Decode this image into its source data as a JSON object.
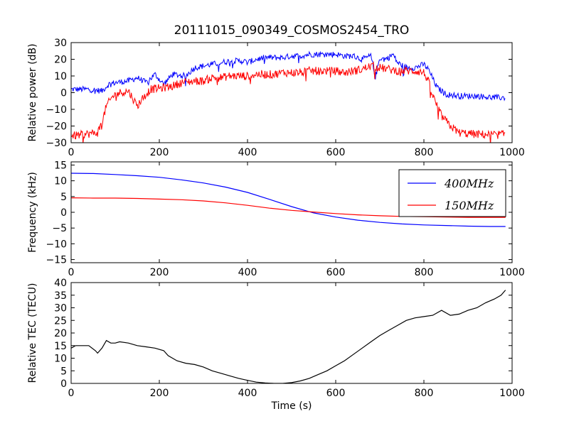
{
  "figure": {
    "title": "20111015_090349_COSMOS2454_TRO"
  },
  "chart_data": [
    {
      "type": "line",
      "xlabel": "",
      "ylabel": "Relative power (dB)",
      "xlim": [
        0,
        1000
      ],
      "ylim": [
        -30,
        30
      ],
      "xticks": [
        "0",
        "200",
        "400",
        "600",
        "800",
        "1000"
      ],
      "yticks": [
        "−30",
        "−20",
        "−10",
        "0",
        "10",
        "20",
        "30"
      ],
      "grid": false,
      "noisy": true,
      "series": [
        {
          "color": "#0000ff",
          "noise": 1.8,
          "points": [
            [
              0,
              2
            ],
            [
              40,
              2
            ],
            [
              70,
              1
            ],
            [
              85,
              5
            ],
            [
              100,
              6
            ],
            [
              130,
              7
            ],
            [
              150,
              9
            ],
            [
              170,
              6
            ],
            [
              190,
              11
            ],
            [
              210,
              5
            ],
            [
              230,
              11
            ],
            [
              260,
              10
            ],
            [
              280,
              15
            ],
            [
              300,
              16
            ],
            [
              320,
              17
            ],
            [
              340,
              18
            ],
            [
              360,
              19
            ],
            [
              380,
              19
            ],
            [
              390,
              19
            ],
            [
              400,
              18
            ],
            [
              420,
              20
            ],
            [
              440,
              21
            ],
            [
              460,
              21
            ],
            [
              480,
              21
            ],
            [
              500,
              22
            ],
            [
              520,
              22
            ],
            [
              540,
              23
            ],
            [
              560,
              23
            ],
            [
              580,
              23
            ],
            [
              600,
              23
            ],
            [
              620,
              22
            ],
            [
              640,
              22
            ],
            [
              660,
              20
            ],
            [
              680,
              22
            ],
            [
              690,
              9
            ],
            [
              700,
              21
            ],
            [
              710,
              20
            ],
            [
              720,
              21
            ],
            [
              730,
              23
            ],
            [
              740,
              18
            ],
            [
              760,
              15
            ],
            [
              780,
              15
            ],
            [
              800,
              17
            ],
            [
              810,
              14
            ],
            [
              830,
              3
            ],
            [
              850,
              -1
            ],
            [
              880,
              -2
            ],
            [
              920,
              -2
            ],
            [
              960,
              -3
            ],
            [
              985,
              -3
            ]
          ]
        },
        {
          "color": "#ff0000",
          "noise": 2.5,
          "points": [
            [
              0,
              -26
            ],
            [
              30,
              -25
            ],
            [
              60,
              -24
            ],
            [
              70,
              -18
            ],
            [
              80,
              -8
            ],
            [
              95,
              -2
            ],
            [
              110,
              0
            ],
            [
              130,
              1
            ],
            [
              150,
              -8
            ],
            [
              160,
              -4
            ],
            [
              180,
              2
            ],
            [
              210,
              3
            ],
            [
              230,
              4
            ],
            [
              250,
              6
            ],
            [
              280,
              7
            ],
            [
              300,
              7
            ],
            [
              320,
              9
            ],
            [
              340,
              9
            ],
            [
              360,
              10
            ],
            [
              380,
              10
            ],
            [
              400,
              10
            ],
            [
              420,
              11
            ],
            [
              440,
              11
            ],
            [
              460,
              11
            ],
            [
              480,
              12
            ],
            [
              500,
              12
            ],
            [
              520,
              12
            ],
            [
              540,
              13
            ],
            [
              560,
              13
            ],
            [
              580,
              13
            ],
            [
              600,
              13
            ],
            [
              620,
              12
            ],
            [
              640,
              13
            ],
            [
              660,
              14
            ],
            [
              680,
              16
            ],
            [
              700,
              15
            ],
            [
              720,
              14
            ],
            [
              740,
              13
            ],
            [
              760,
              13
            ],
            [
              780,
              13
            ],
            [
              800,
              12
            ],
            [
              810,
              7
            ],
            [
              820,
              -2
            ],
            [
              830,
              -8
            ],
            [
              840,
              -14
            ],
            [
              860,
              -20
            ],
            [
              880,
              -24
            ],
            [
              920,
              -25
            ],
            [
              960,
              -25
            ],
            [
              985,
              -25
            ]
          ]
        }
      ]
    },
    {
      "type": "line",
      "xlabel": "",
      "ylabel": "Frequency (kHz)",
      "xlim": [
        0,
        1000
      ],
      "ylim": [
        -16,
        16
      ],
      "xticks": [
        "0",
        "200",
        "400",
        "600",
        "800",
        "1000"
      ],
      "yticks": [
        "−15",
        "−10",
        "−5",
        "0",
        "5",
        "10",
        "15"
      ],
      "ytick_values": [
        -15,
        -10,
        -5,
        0,
        5,
        10,
        15
      ],
      "grid": false,
      "legend": "upper-right",
      "series": [
        {
          "name": "400MHz",
          "color": "#0000ff",
          "points": [
            [
              0,
              12.4
            ],
            [
              50,
              12.3
            ],
            [
              100,
              12.0
            ],
            [
              150,
              11.6
            ],
            [
              200,
              11.1
            ],
            [
              250,
              10.3
            ],
            [
              300,
              9.3
            ],
            [
              350,
              8.0
            ],
            [
              400,
              6.3
            ],
            [
              450,
              4.1
            ],
            [
              500,
              1.8
            ],
            [
              550,
              -0.2
            ],
            [
              600,
              -1.5
            ],
            [
              650,
              -2.5
            ],
            [
              700,
              -3.2
            ],
            [
              750,
              -3.7
            ],
            [
              800,
              -4.0
            ],
            [
              850,
              -4.2
            ],
            [
              900,
              -4.4
            ],
            [
              950,
              -4.5
            ],
            [
              985,
              -4.5
            ]
          ]
        },
        {
          "name": "150MHz",
          "color": "#ff0000",
          "points": [
            [
              0,
              4.6
            ],
            [
              50,
              4.5
            ],
            [
              100,
              4.5
            ],
            [
              150,
              4.4
            ],
            [
              200,
              4.2
            ],
            [
              250,
              4.0
            ],
            [
              300,
              3.6
            ],
            [
              350,
              3.0
            ],
            [
              400,
              2.2
            ],
            [
              450,
              1.3
            ],
            [
              500,
              0.6
            ],
            [
              550,
              0.1
            ],
            [
              600,
              -0.4
            ],
            [
              650,
              -0.8
            ],
            [
              700,
              -1.1
            ],
            [
              750,
              -1.3
            ],
            [
              800,
              -1.4
            ],
            [
              850,
              -1.5
            ],
            [
              900,
              -1.6
            ],
            [
              950,
              -1.6
            ],
            [
              985,
              -1.6
            ]
          ]
        }
      ]
    },
    {
      "type": "line",
      "xlabel": "Time (s)",
      "ylabel": "Relative TEC (TECU)",
      "xlim": [
        0,
        1000
      ],
      "ylim": [
        0,
        40
      ],
      "xticks": [
        "0",
        "200",
        "400",
        "600",
        "800",
        "1000"
      ],
      "yticks": [
        "0",
        "5",
        "10",
        "15",
        "20",
        "25",
        "30",
        "35",
        "40"
      ],
      "grid": false,
      "series": [
        {
          "color": "#000000",
          "points": [
            [
              0,
              14
            ],
            [
              10,
              15
            ],
            [
              20,
              15
            ],
            [
              40,
              15
            ],
            [
              55,
              13
            ],
            [
              60,
              12
            ],
            [
              70,
              14
            ],
            [
              80,
              17
            ],
            [
              90,
              16
            ],
            [
              100,
              16
            ],
            [
              110,
              16.5
            ],
            [
              130,
              16
            ],
            [
              150,
              15
            ],
            [
              170,
              14.5
            ],
            [
              190,
              14
            ],
            [
              210,
              13
            ],
            [
              220,
              11
            ],
            [
              240,
              9
            ],
            [
              260,
              8
            ],
            [
              280,
              7.5
            ],
            [
              300,
              6.5
            ],
            [
              320,
              5
            ],
            [
              340,
              4
            ],
            [
              360,
              3
            ],
            [
              380,
              2
            ],
            [
              400,
              1.2
            ],
            [
              420,
              0.5
            ],
            [
              440,
              0.2
            ],
            [
              460,
              0
            ],
            [
              480,
              0
            ],
            [
              500,
              0.3
            ],
            [
              520,
              1
            ],
            [
              540,
              2
            ],
            [
              560,
              3.5
            ],
            [
              580,
              5
            ],
            [
              600,
              7
            ],
            [
              620,
              9
            ],
            [
              640,
              11.5
            ],
            [
              660,
              14
            ],
            [
              680,
              16.5
            ],
            [
              700,
              19
            ],
            [
              720,
              21
            ],
            [
              740,
              23
            ],
            [
              760,
              25
            ],
            [
              780,
              26
            ],
            [
              800,
              26.5
            ],
            [
              820,
              27
            ],
            [
              840,
              29
            ],
            [
              860,
              27
            ],
            [
              880,
              27.5
            ],
            [
              900,
              29
            ],
            [
              920,
              30
            ],
            [
              940,
              32
            ],
            [
              960,
              33.5
            ],
            [
              975,
              35
            ],
            [
              985,
              37
            ]
          ]
        }
      ]
    }
  ]
}
